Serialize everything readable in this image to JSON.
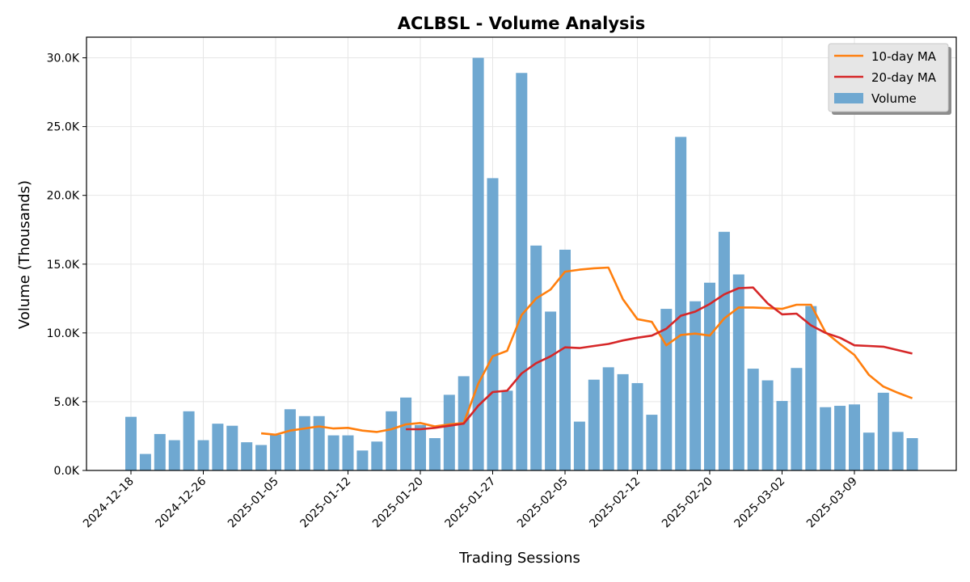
{
  "chart_data": {
    "type": "bar",
    "title": "ACLBSL - Volume Analysis",
    "xlabel": "Trading Sessions",
    "ylabel": "Volume (Thousands)",
    "ylim": [
      0,
      31500
    ],
    "yticks": [
      0,
      5000,
      10000,
      15000,
      20000,
      25000,
      30000
    ],
    "ytick_labels": [
      "0.0K",
      "5.0K",
      "10.0K",
      "15.0K",
      "20.0K",
      "25.0K",
      "30.0K"
    ],
    "xtick_labels": [
      "2024-12-18",
      "2024-12-26",
      "2025-01-05",
      "2025-01-12",
      "2025-01-20",
      "2025-01-27",
      "2025-02-05",
      "2025-02-12",
      "2025-02-20",
      "2025-03-02",
      "2025-03-09"
    ],
    "xtick_positions": [
      0,
      5,
      10,
      15,
      20,
      25,
      30,
      35,
      40,
      45,
      50
    ],
    "grid": true,
    "legend_position": "top-right",
    "series": [
      {
        "name": "Volume",
        "kind": "bar",
        "color": "#6fa8d1",
        "values": [
          3900,
          1200,
          2650,
          2200,
          4300,
          2200,
          3400,
          3250,
          2050,
          1850,
          2600,
          4450,
          3950,
          3950,
          2550,
          2550,
          1450,
          2100,
          4300,
          5300,
          3300,
          2350,
          5500,
          6850,
          30000,
          21250,
          5800,
          28900,
          16350,
          11550,
          16050,
          3550,
          6600,
          7500,
          7000,
          6350,
          4050,
          11750,
          24250,
          12300,
          13650,
          17350,
          14250,
          7400,
          6550,
          5050,
          7450,
          11950,
          4600,
          4700,
          4800,
          2750,
          5650,
          2800,
          2350
        ]
      },
      {
        "name": "10-day MA",
        "kind": "line",
        "color": "#ff7f0e",
        "values": [
          null,
          null,
          null,
          null,
          null,
          null,
          null,
          null,
          null,
          2700,
          2600,
          2900,
          3050,
          3200,
          3050,
          3100,
          2900,
          2800,
          3000,
          3350,
          3450,
          3200,
          3350,
          3450,
          6300,
          8300,
          8700,
          11300,
          12500,
          13150,
          14450,
          14600,
          14700,
          14750,
          12450,
          11000,
          10800,
          9100,
          9850,
          9950,
          9800,
          11050,
          11850,
          11850,
          11800,
          11750,
          12050,
          12050,
          10050,
          9200,
          8400,
          6950,
          6100,
          5650,
          5250
        ]
      },
      {
        "name": "20-day MA",
        "kind": "line",
        "color": "#d62728",
        "values": [
          null,
          null,
          null,
          null,
          null,
          null,
          null,
          null,
          null,
          null,
          null,
          null,
          null,
          null,
          null,
          null,
          null,
          null,
          null,
          3000,
          3000,
          3100,
          3250,
          3400,
          4700,
          5700,
          5800,
          7050,
          7800,
          8300,
          8950,
          8900,
          9050,
          9200,
          9450,
          9650,
          9800,
          10300,
          11250,
          11550,
          12100,
          12800,
          13250,
          13300,
          12150,
          11350,
          11400,
          10550,
          10000,
          9650,
          9100,
          9050,
          9000,
          8750,
          8500
        ]
      }
    ]
  }
}
